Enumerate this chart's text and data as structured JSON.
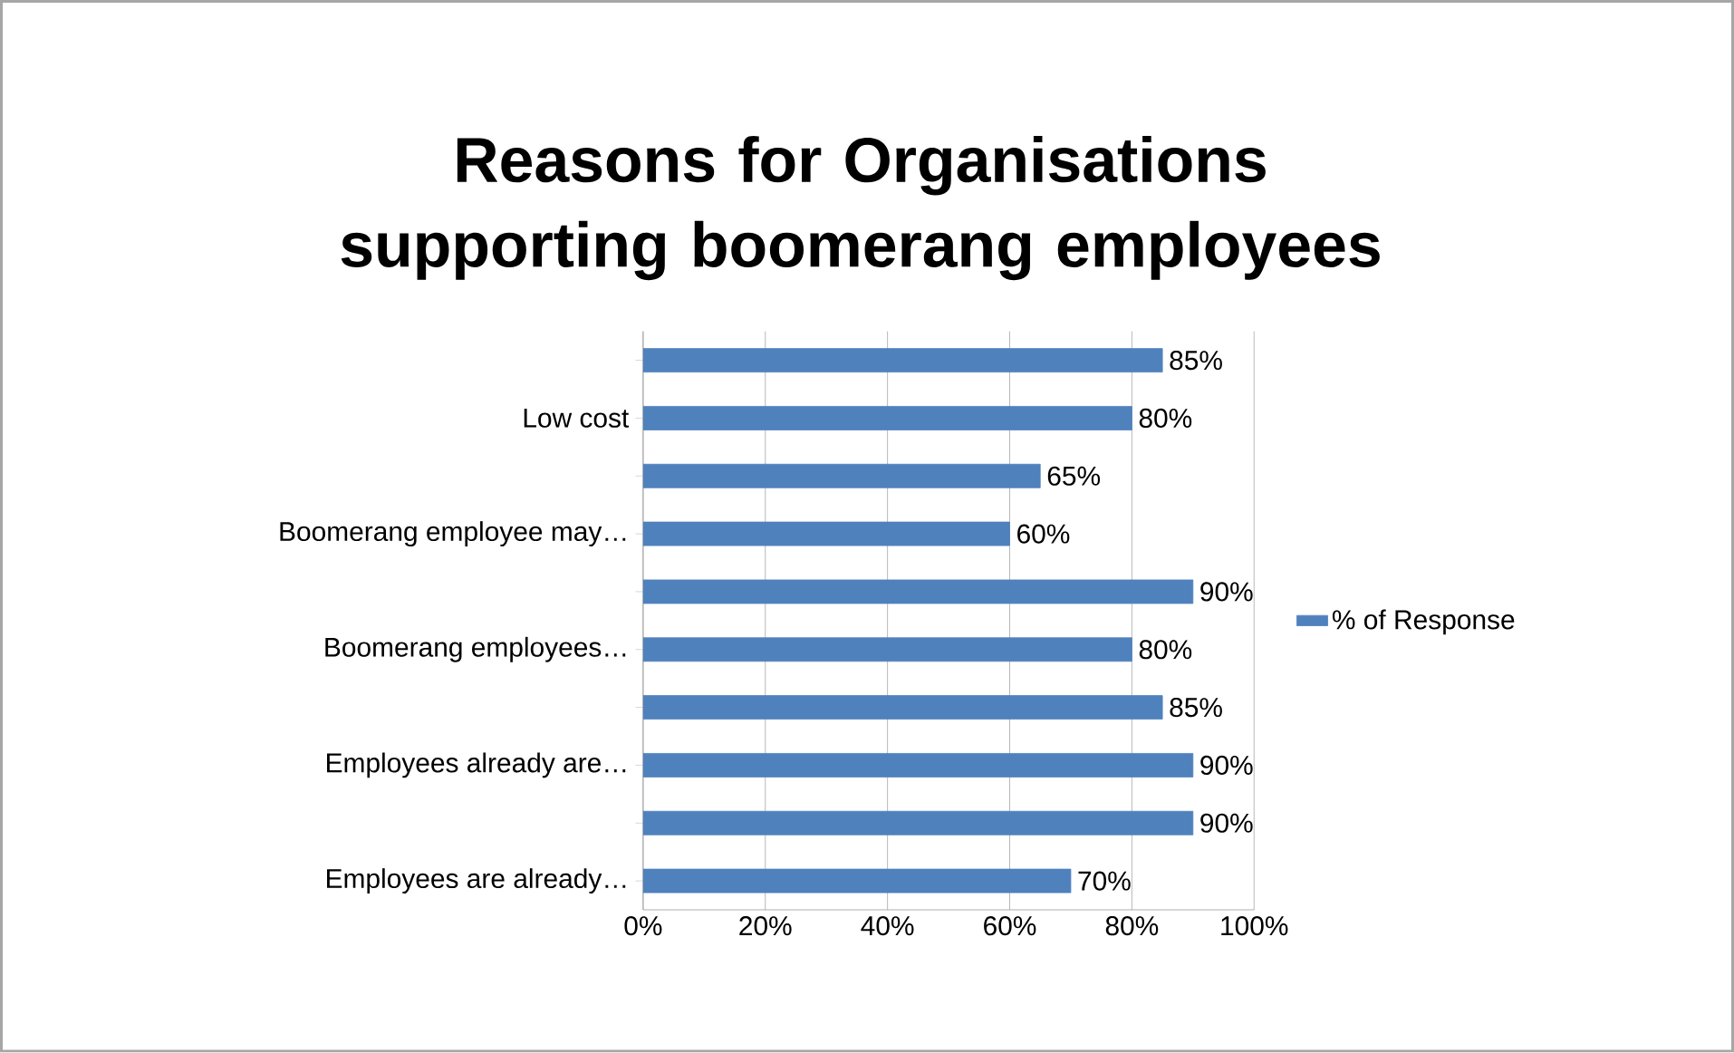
{
  "chart_data": {
    "type": "bar",
    "orientation": "horizontal",
    "title": "Reasons for Organisations supporting boomerang employees",
    "categories": [
      null,
      "Low cost",
      null,
      "Boomerang employee may…",
      null,
      "Boomerang employees…",
      null,
      "Employees already are…",
      null,
      "Employees are already…"
    ],
    "series": [
      {
        "name": "% of Response",
        "color": "#4f81bd",
        "values": [
          85,
          80,
          65,
          60,
          90,
          80,
          85,
          90,
          90,
          70
        ],
        "value_labels": [
          "85%",
          "80%",
          "65%",
          "60%",
          "90%",
          "80%",
          "85%",
          "90%",
          "90%",
          "70%"
        ]
      }
    ],
    "xlim": [
      0,
      100
    ],
    "xticks": [
      {
        "value": 0,
        "label": "0%"
      },
      {
        "value": 20,
        "label": "20%"
      },
      {
        "value": 40,
        "label": "40%"
      },
      {
        "value": 60,
        "label": "60%"
      },
      {
        "value": 80,
        "label": "80%"
      },
      {
        "value": 100,
        "label": "100%"
      }
    ],
    "grid": "x",
    "legend": "right"
  }
}
